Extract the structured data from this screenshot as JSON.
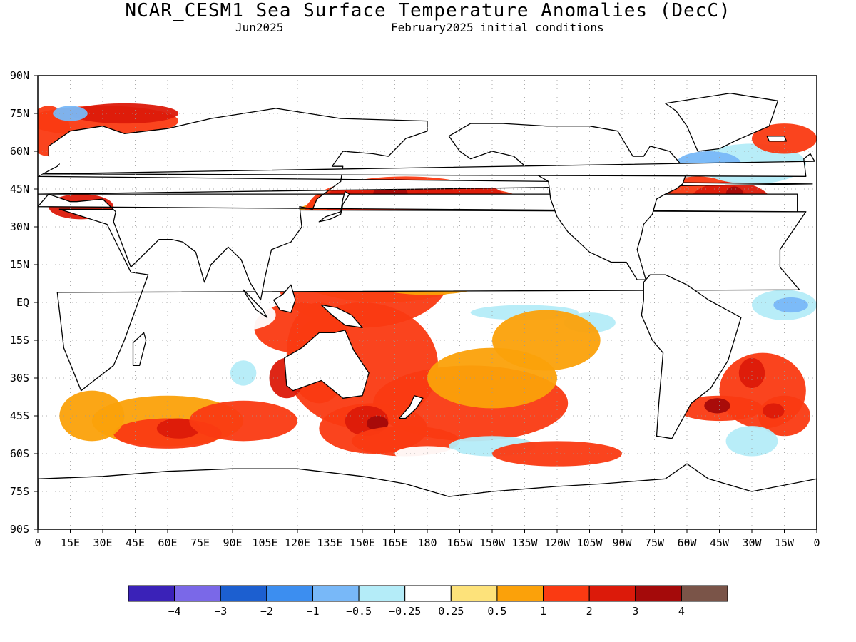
{
  "header": {
    "title": "NCAR_CESM1 Sea Surface Temperature Anomalies (DecC)",
    "valid_month": "Jun2025",
    "initial_conditions": "February2025 initial conditions"
  },
  "map": {
    "projection": "cylindrical equidistant",
    "lon_range": [
      0,
      360
    ],
    "lat_range": [
      -90,
      90
    ],
    "lat_labels": [
      "90N",
      "75N",
      "60N",
      "45N",
      "30N",
      "15N",
      "EQ",
      "15S",
      "30S",
      "45S",
      "60S",
      "75S",
      "90S"
    ],
    "lon_labels": [
      "0",
      "15E",
      "30E",
      "45E",
      "60E",
      "75E",
      "90E",
      "105E",
      "120E",
      "135E",
      "150E",
      "165E",
      "180",
      "165W",
      "150W",
      "135W",
      "120W",
      "105W",
      "90W",
      "75W",
      "60W",
      "45W",
      "30W",
      "15W",
      "0"
    ],
    "grid": true,
    "anomaly_regions": [
      {
        "name": "North Pacific warm",
        "lon": 160,
        "lat": 40,
        "value": 2
      },
      {
        "name": "North Pacific warm core",
        "lon": 163,
        "lat": 43,
        "value": 3
      },
      {
        "name": "Tropical West Pacific",
        "lon": 150,
        "lat": 15,
        "value": 1
      },
      {
        "name": "Eastern equatorial Pacific",
        "lon": 230,
        "lat": -3,
        "value": -0.5
      },
      {
        "name": "North Atlantic warm",
        "lon": 320,
        "lat": 38,
        "value": 2
      },
      {
        "name": "South Atlantic warm",
        "lon": 315,
        "lat": -42,
        "value": 3
      },
      {
        "name": "Equatorial Atlantic cool",
        "lon": 350,
        "lat": -1,
        "value": -1
      },
      {
        "name": "Southern Ocean south of Australia",
        "lon": 150,
        "lat": -50,
        "value": 2
      },
      {
        "name": "Southern Indian Ocean",
        "lon": 60,
        "lat": -45,
        "value": 1
      },
      {
        "name": "Labrador Sea cool",
        "lon": 310,
        "lat": 55,
        "value": -1
      },
      {
        "name": "Mediterranean warm",
        "lon": 20,
        "lat": 38,
        "value": 2
      },
      {
        "name": "Barents Sea warm",
        "lon": 40,
        "lat": 75,
        "value": 2
      }
    ]
  },
  "colorbar": {
    "labels": [
      "−4",
      "−3",
      "−2",
      "−1",
      "−0.5",
      "−0.25",
      "0.25",
      "0.5",
      "1",
      "2",
      "3",
      "4"
    ],
    "colors": [
      "#3a22b8",
      "#7a68e8",
      "#1c5fd0",
      "#3c8ef0",
      "#78b8f8",
      "#b4ecf8",
      "#ffffff",
      "#fde27a",
      "#fba10a",
      "#fa3a12",
      "#dc1a0a",
      "#a40a0a",
      "#7a5448"
    ]
  }
}
